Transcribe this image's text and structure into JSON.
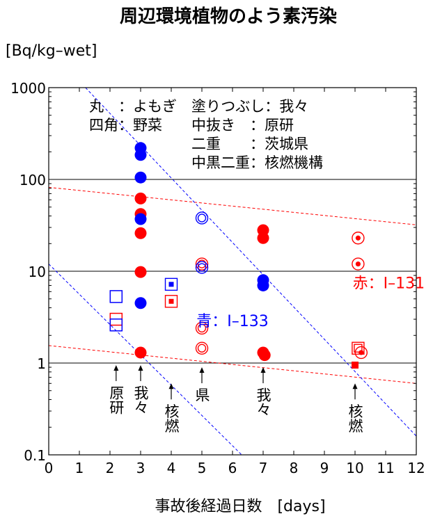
{
  "chart_data": {
    "type": "scatter",
    "title": "周辺環境植物のよう素汚染",
    "ylabel": "[Bq/kg–wet]",
    "xlabel": "事故後経過日数　[days]",
    "xlim": [
      0,
      12
    ],
    "ylim": [
      0.1,
      1000
    ],
    "yscale": "log",
    "x_ticks": [
      "0",
      "1",
      "2",
      "3",
      "4",
      "5",
      "6",
      "7",
      "8",
      "9",
      "10",
      "11",
      "12"
    ],
    "y_ticks": [
      {
        "value": 1000,
        "label": "1000"
      },
      {
        "value": 100,
        "label": "100"
      },
      {
        "value": 10,
        "label": "10"
      },
      {
        "value": 1,
        "label": "1"
      },
      {
        "value": 0.1,
        "label": "0.1"
      }
    ],
    "horizontal_gridlines": [
      1,
      10,
      100
    ],
    "legend_lines": [
      "丸　：よもぎ　塗りつぶし：我々",
      "四角：野菜　　中抜き　：原研",
      "　　　　　　　二重　　：茨城県",
      "　　　　　　　中黒二重：核燃機構"
    ],
    "series_labels": [
      {
        "text": "赤：I–131",
        "color": "#ff0000",
        "x": 11.1,
        "y": 7.5
      },
      {
        "text": "青：I–133",
        "color": "#0000ff",
        "x": 6.0,
        "y": 2.9
      }
    ],
    "annotations": [
      {
        "text": "原研",
        "x": 2.2,
        "y_tip": 0.95
      },
      {
        "text": "我々",
        "x": 3.0,
        "y_tip": 0.95
      },
      {
        "text": "核燃",
        "x": 4.0,
        "y_tip": 0.6
      },
      {
        "text": "県",
        "x": 5.0,
        "y_tip": 0.9
      },
      {
        "text": "我々",
        "x": 7.0,
        "y_tip": 0.9
      },
      {
        "text": "核燃",
        "x": 10.0,
        "y_tip": 0.6
      }
    ],
    "colors": {
      "i131": "#ff0000",
      "i133": "#0000ff",
      "grid": "#000000"
    },
    "series": [
      {
        "name": "赤：I–131",
        "color": "#ff0000",
        "points": [
          {
            "x": 3.0,
            "y": 62,
            "marker": "circle-filled"
          },
          {
            "x": 3.0,
            "y": 42,
            "marker": "circle-filled"
          },
          {
            "x": 3.0,
            "y": 26,
            "marker": "circle-filled"
          },
          {
            "x": 3.0,
            "y": 9.8,
            "marker": "circle-filled"
          },
          {
            "x": 3.0,
            "y": 1.3,
            "marker": "circle-filled"
          },
          {
            "x": 7.0,
            "y": 28,
            "marker": "circle-filled"
          },
          {
            "x": 7.0,
            "y": 23,
            "marker": "circle-filled"
          },
          {
            "x": 7.0,
            "y": 1.3,
            "marker": "circle-filled"
          },
          {
            "x": 7.05,
            "y": 1.22,
            "marker": "circle-filled"
          },
          {
            "x": 2.2,
            "y": 3.0,
            "marker": "square-open"
          },
          {
            "x": 5.0,
            "y": 12,
            "marker": "circle-double"
          },
          {
            "x": 5.0,
            "y": 2.4,
            "marker": "circle-double"
          },
          {
            "x": 5.0,
            "y": 1.45,
            "marker": "circle-double"
          },
          {
            "x": 10.1,
            "y": 1.45,
            "marker": "square-double"
          },
          {
            "x": 10.1,
            "y": 23,
            "marker": "circle-dot-double"
          },
          {
            "x": 10.1,
            "y": 12,
            "marker": "circle-dot-double"
          },
          {
            "x": 10.2,
            "y": 1.3,
            "marker": "circle-dot-double"
          },
          {
            "x": 4.0,
            "y": 4.7,
            "marker": "square-dot-double"
          },
          {
            "x": 10.0,
            "y": 0.95,
            "marker": "square-filled"
          }
        ]
      },
      {
        "name": "青：I–133",
        "color": "#0000ff",
        "points": [
          {
            "x": 3.0,
            "y": 220,
            "marker": "circle-filled"
          },
          {
            "x": 3.0,
            "y": 185,
            "marker": "circle-filled"
          },
          {
            "x": 3.0,
            "y": 105,
            "marker": "circle-filled"
          },
          {
            "x": 3.0,
            "y": 37,
            "marker": "circle-filled"
          },
          {
            "x": 3.0,
            "y": 4.5,
            "marker": "circle-filled"
          },
          {
            "x": 7.0,
            "y": 8.0,
            "marker": "circle-filled"
          },
          {
            "x": 7.0,
            "y": 7.0,
            "marker": "circle-filled"
          },
          {
            "x": 2.2,
            "y": 5.3,
            "marker": "square-open"
          },
          {
            "x": 2.2,
            "y": 2.6,
            "marker": "square-open"
          },
          {
            "x": 5.0,
            "y": 38,
            "marker": "circle-double"
          },
          {
            "x": 5.0,
            "y": 11,
            "marker": "circle-double"
          },
          {
            "x": 4.0,
            "y": 7.2,
            "marker": "square-dot-double"
          }
        ]
      }
    ],
    "trend_lines": [
      {
        "color": "#ff0000",
        "from": {
          "x": 0,
          "y": 82
        },
        "to": {
          "x": 12,
          "y": 32
        }
      },
      {
        "color": "#ff0000",
        "from": {
          "x": 0,
          "y": 1.55
        },
        "to": {
          "x": 12,
          "y": 0.6
        }
      },
      {
        "color": "#0000ff",
        "from": {
          "x": 1.2,
          "y": 1000
        },
        "to": {
          "x": 12,
          "y": 0.16
        }
      },
      {
        "color": "#0000ff",
        "from": {
          "x": 0,
          "y": 12
        },
        "to": {
          "x": 6.3,
          "y": 0.1
        }
      }
    ]
  }
}
